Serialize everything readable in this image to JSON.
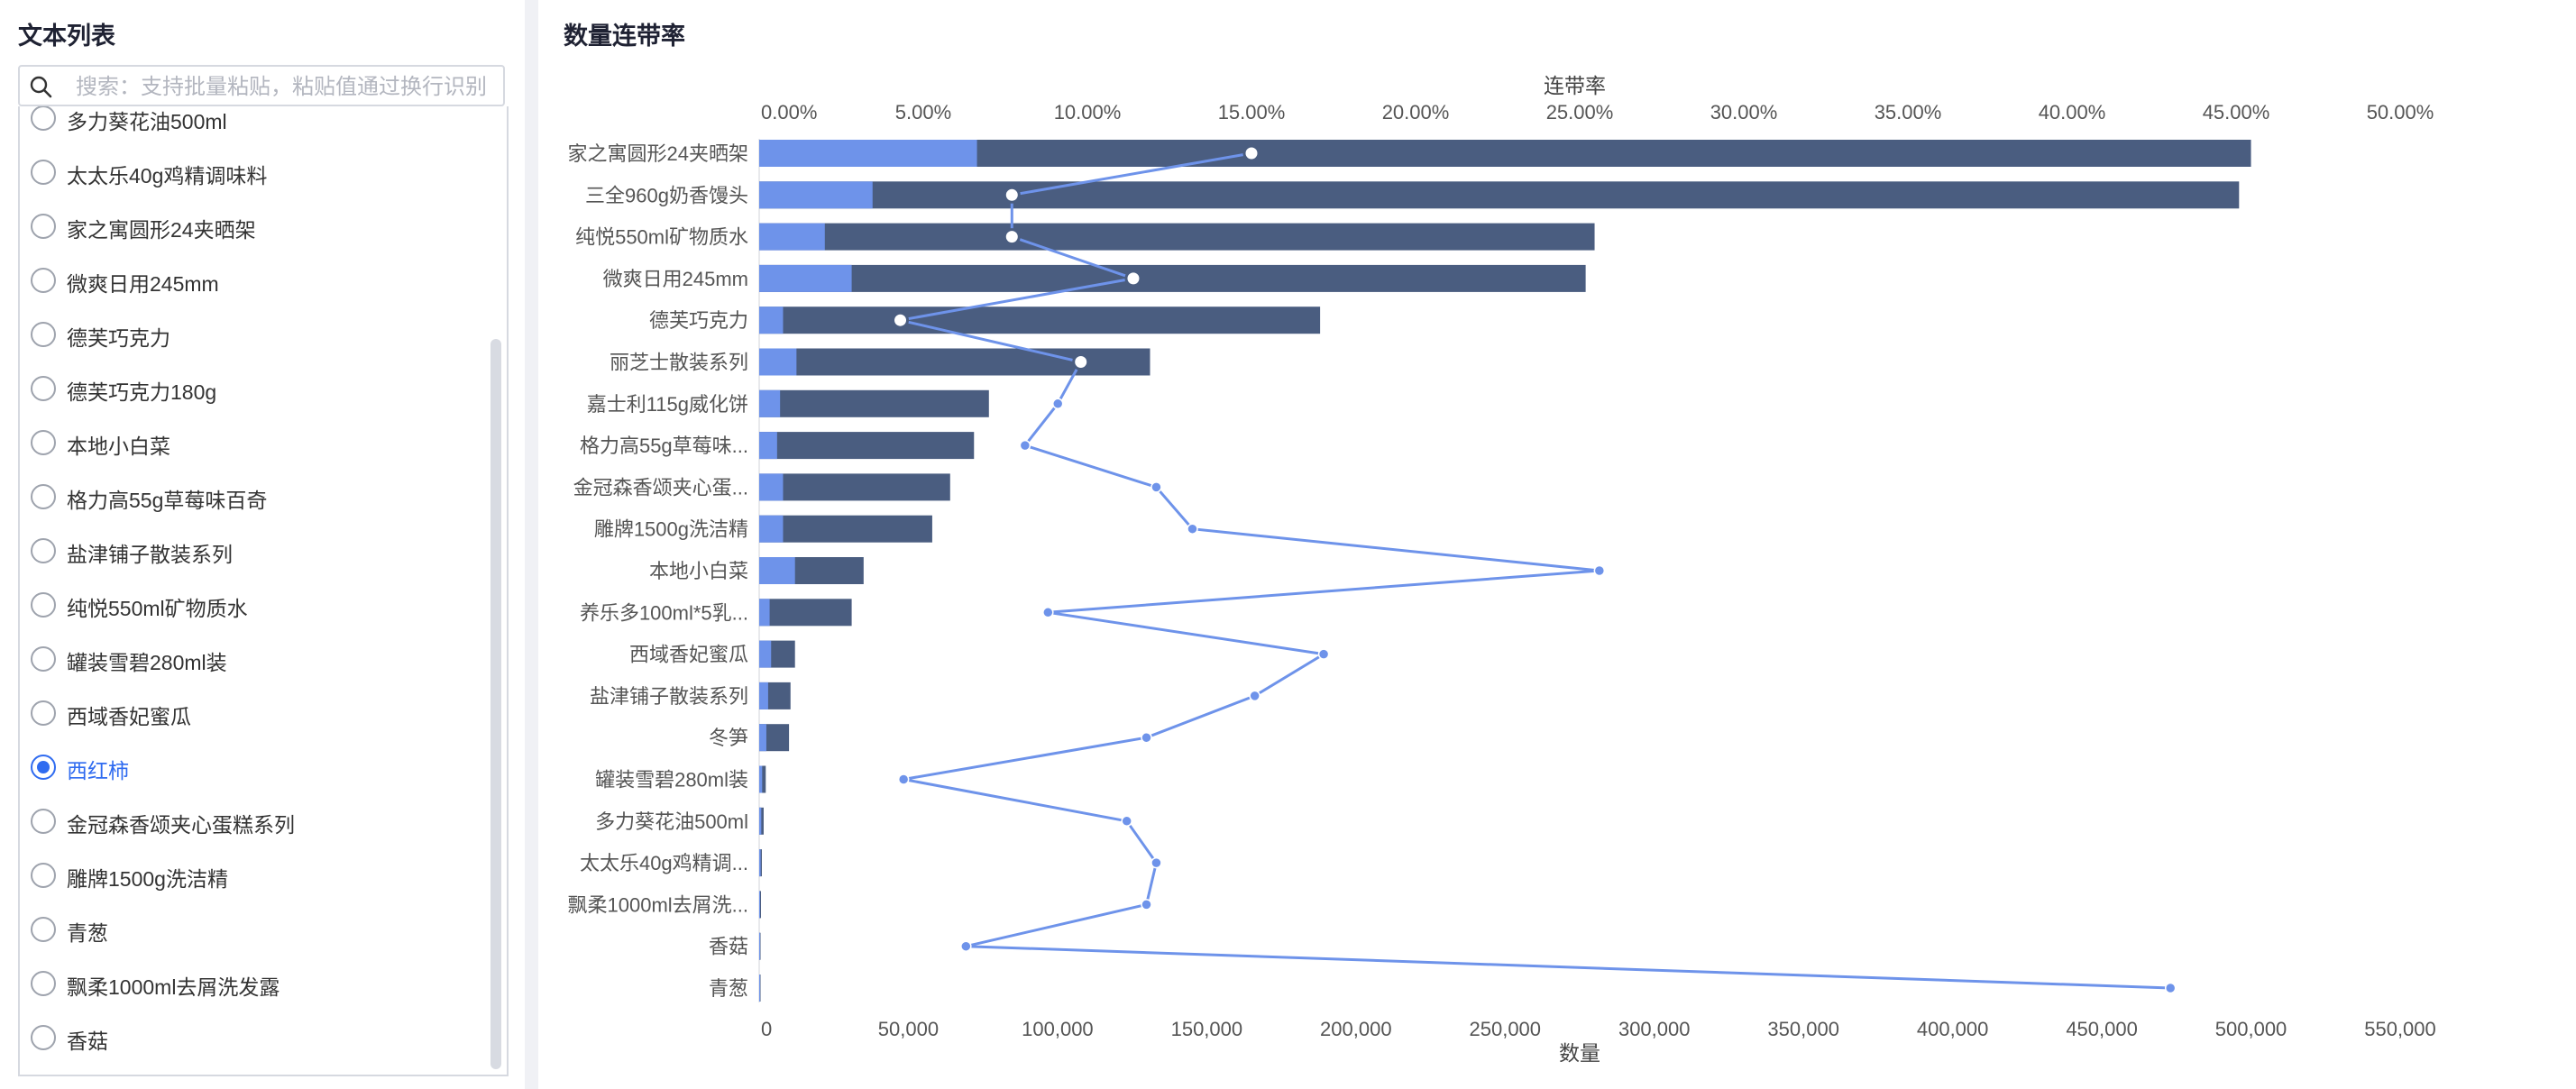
{
  "left_panel": {
    "title": "文本列表",
    "search": {
      "placeholder": "搜索：支持批量粘贴，粘贴值通过换行识别",
      "value": ""
    },
    "selected": "西红柿",
    "items": [
      "多力葵花油500ml",
      "太太乐40g鸡精调味料",
      "家之寓圆形24夹晒架",
      "微爽日用245mm",
      "德芙巧克力",
      "德芙巧克力180g",
      "本地小白菜",
      "格力高55g草莓味百奇",
      "盐津铺子散装系列",
      "纯悦550ml矿物质水",
      "罐装雪碧280ml装",
      "西域香妃蜜瓜",
      "西红柿",
      "金冠森香颂夹心蛋糕系列",
      "雕牌1500g洗洁精",
      "青葱",
      "飘柔1000ml去屑洗发露",
      "香菇"
    ]
  },
  "chart_panel": {
    "title": "数量连带率"
  },
  "colors": {
    "total_bar": "#4a5d80",
    "joint_bar": "#6e93ea",
    "rate_line": "#6e93ea"
  },
  "chart_data": {
    "type": "bar",
    "orientation": "horizontal",
    "categories": [
      "家之寓圆形24夹晒架",
      "三全960g奶香馒头",
      "纯悦550ml矿物质水",
      "微爽日用245mm",
      "德芙巧克力",
      "丽芝士散装系列",
      "嘉士利115g威化饼",
      "格力高55g草莓味...",
      "金冠森香颂夹心蛋...",
      "雕牌1500g洗洁精",
      "本地小白菜",
      "养乐多100ml*5乳...",
      "西域香妃蜜瓜",
      "盐津铺子散装系列",
      "冬笋",
      "罐装雪碧280ml装",
      "多力葵花油500ml",
      "太太乐40g鸡精调...",
      "飘柔1000ml去屑洗...",
      "香菇",
      "青葱"
    ],
    "series": [
      {
        "values": [
          500000,
          496000,
          280000,
          277000,
          188000,
          131000,
          77000,
          72000,
          64000,
          58000,
          35000,
          31000,
          12000,
          10500,
          10000,
          2200,
          1500,
          900,
          600,
          180,
          100
        ]
      },
      {
        "values": [
          73000,
          38000,
          22000,
          31000,
          8000,
          12500,
          7000,
          6000,
          8000,
          8000,
          12000,
          3500,
          4000,
          3000,
          2400,
          1000,
          700,
          500,
          200,
          80,
          60
        ]
      },
      {
        "axis": "top",
        "values": [
          15.0,
          7.7,
          7.7,
          11.4,
          4.3,
          9.8,
          9.1,
          8.1,
          12.1,
          13.2,
          25.6,
          8.8,
          17.2,
          15.1,
          11.8,
          4.4,
          11.2,
          12.1,
          11.8,
          6.3,
          43.0
        ]
      }
    ],
    "x_bottom": {
      "label": "数量",
      "ticks": [
        "0",
        "50,000",
        "100,000",
        "150,000",
        "200,000",
        "250,000",
        "300,000",
        "350,000",
        "400,000",
        "450,000",
        "500,000",
        "550,000"
      ],
      "range": [
        0,
        550000
      ]
    },
    "x_top": {
      "label": "连带率",
      "ticks": [
        "0.00%",
        "5.00%",
        "10.00%",
        "15.00%",
        "20.00%",
        "25.00%",
        "30.00%",
        "35.00%",
        "40.00%",
        "45.00%",
        "50.00%"
      ],
      "range": [
        0,
        50
      ]
    }
  }
}
